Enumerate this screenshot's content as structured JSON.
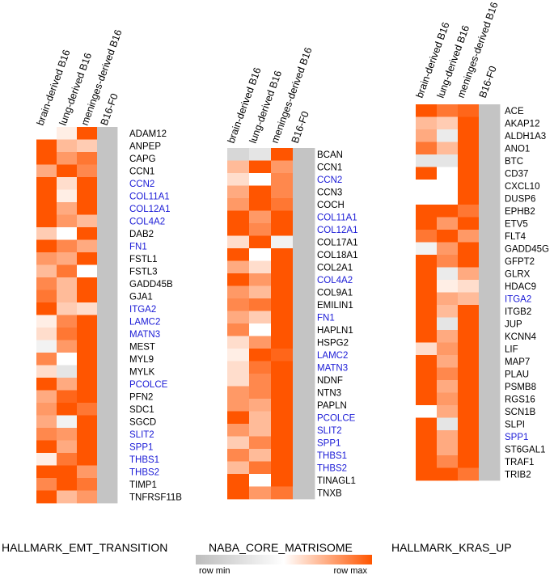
{
  "chart_data": [
    {
      "type": "heatmap",
      "title": "HALLMARK_EMT_TRANSITION",
      "columns": [
        "brain-derived B16",
        "lung-derived B16",
        "meninges-derived B16",
        "B16-F0"
      ],
      "rows": [
        "ADAM12",
        "ANPEP",
        "CAPG",
        "CCN1",
        "CCN2",
        "COL11A1",
        "COL12A1",
        "COL4A2",
        "DAB2",
        "FN1",
        "FSTL1",
        "FSTL3",
        "GADD45B",
        "GJA1",
        "ITGA2",
        "LAMC2",
        "MATN3",
        "MEST",
        "MYL9",
        "MYLK",
        "PCOLCE",
        "PFN2",
        "SDC1",
        "SGCD",
        "SLIT2",
        "SPP1",
        "THBS1",
        "THBS2",
        "TIMP1",
        "TNFRSF11B"
      ],
      "highlighted": [
        "CCN2",
        "COL11A1",
        "COL12A1",
        "COL4A2",
        "FN1",
        "ITGA2",
        "LAMC2",
        "MATN3",
        "PCOLCE",
        "SLIT2",
        "SPP1",
        "THBS1",
        "THBS2"
      ],
      "values": [
        [
          0.5,
          0.55,
          1.0,
          0.0
        ],
        [
          1.0,
          0.7,
          0.65,
          0.0
        ],
        [
          1.0,
          0.8,
          0.9,
          0.0
        ],
        [
          0.75,
          1.0,
          0.85,
          0.0
        ],
        [
          1.0,
          0.6,
          1.0,
          0.0
        ],
        [
          1.0,
          0.55,
          1.0,
          0.0
        ],
        [
          1.0,
          0.75,
          1.0,
          0.0
        ],
        [
          1.0,
          0.8,
          0.7,
          0.0
        ],
        [
          0.65,
          0.5,
          1.0,
          0.0
        ],
        [
          1.0,
          0.85,
          0.75,
          0.0
        ],
        [
          0.8,
          0.75,
          1.0,
          0.0
        ],
        [
          0.7,
          0.9,
          0.5,
          0.0
        ],
        [
          0.85,
          0.7,
          1.0,
          0.0
        ],
        [
          0.9,
          0.7,
          1.0,
          0.0
        ],
        [
          1.0,
          0.65,
          0.6,
          0.0
        ],
        [
          0.55,
          0.85,
          1.0,
          0.0
        ],
        [
          0.6,
          0.9,
          1.0,
          0.0
        ],
        [
          0.4,
          0.8,
          1.0,
          0.0
        ],
        [
          0.85,
          0.5,
          1.0,
          0.0
        ],
        [
          0.6,
          0.3,
          1.0,
          0.0
        ],
        [
          1.0,
          0.75,
          1.0,
          0.0
        ],
        [
          0.75,
          0.95,
          1.0,
          0.0
        ],
        [
          0.8,
          1.0,
          0.9,
          0.0
        ],
        [
          0.75,
          0.4,
          1.0,
          0.0
        ],
        [
          0.85,
          0.8,
          1.0,
          0.0
        ],
        [
          1.0,
          0.75,
          1.0,
          0.0
        ],
        [
          0.55,
          0.9,
          1.0,
          0.0
        ],
        [
          1.0,
          1.0,
          0.8,
          0.0
        ],
        [
          0.85,
          1.0,
          0.9,
          0.0
        ],
        [
          1.0,
          0.7,
          0.8,
          0.0
        ]
      ]
    },
    {
      "type": "heatmap",
      "title": "NABA_CORE_MATRISOME",
      "columns": [
        "brain-derived B16",
        "lung-derived B16",
        "meninges-derived B16",
        "B16-F0"
      ],
      "rows": [
        "BCAN",
        "CCN1",
        "CCN2",
        "CCN3",
        "COCH",
        "COL11A1",
        "COL12A1",
        "COL17A1",
        "COL18A1",
        "COL2A1",
        "COL4A2",
        "COL9A1",
        "EMILIN1",
        "FN1",
        "HAPLN1",
        "HSPG2",
        "LAMC2",
        "MATN3",
        "NDNF",
        "NTN3",
        "PAPLN",
        "PCOLCE",
        "SLIT2",
        "SPP1",
        "THBS1",
        "THBS2",
        "TINAGL1",
        "TNXB"
      ],
      "highlighted": [
        "CCN2",
        "COL11A1",
        "COL12A1",
        "COL4A2",
        "FN1",
        "LAMC2",
        "MATN3",
        "PCOLCE",
        "SLIT2",
        "SPP1",
        "THBS1",
        "THBS2"
      ],
      "values": [
        [
          0.2,
          0.3,
          1.0,
          0.0
        ],
        [
          0.7,
          1.0,
          0.8,
          0.0
        ],
        [
          0.6,
          0.5,
          0.85,
          0.0
        ],
        [
          0.75,
          1.0,
          0.85,
          0.0
        ],
        [
          0.8,
          1.0,
          0.9,
          0.0
        ],
        [
          1.0,
          0.8,
          1.0,
          0.0
        ],
        [
          1.0,
          0.85,
          1.0,
          0.0
        ],
        [
          0.6,
          1.0,
          0.4,
          0.0
        ],
        [
          1.0,
          0.5,
          1.0,
          0.0
        ],
        [
          0.75,
          0.6,
          1.0,
          0.0
        ],
        [
          1.0,
          0.8,
          1.0,
          0.0
        ],
        [
          0.8,
          0.7,
          1.0,
          0.0
        ],
        [
          0.85,
          0.9,
          1.0,
          0.0
        ],
        [
          0.75,
          0.65,
          1.0,
          0.0
        ],
        [
          0.85,
          0.5,
          1.0,
          0.0
        ],
        [
          0.6,
          0.8,
          1.0,
          0.0
        ],
        [
          0.55,
          1.0,
          0.95,
          0.0
        ],
        [
          0.6,
          0.9,
          1.0,
          0.0
        ],
        [
          0.6,
          0.85,
          1.0,
          0.0
        ],
        [
          0.8,
          0.85,
          1.0,
          0.0
        ],
        [
          0.8,
          0.75,
          1.0,
          0.0
        ],
        [
          1.0,
          0.7,
          1.0,
          0.0
        ],
        [
          0.8,
          0.7,
          1.0,
          0.0
        ],
        [
          0.65,
          0.85,
          1.0,
          0.0
        ],
        [
          0.85,
          0.7,
          1.0,
          0.0
        ],
        [
          0.7,
          0.9,
          1.0,
          0.0
        ],
        [
          1.0,
          0.5,
          1.0,
          0.0
        ],
        [
          1.0,
          0.8,
          0.9,
          0.0
        ]
      ]
    },
    {
      "type": "heatmap",
      "title": "HALLMARK_KRAS_UP",
      "columns": [
        "brain-derived B16",
        "lung-derived B16",
        "meninges-derived B16",
        "B16-F0"
      ],
      "rows": [
        "ACE",
        "AKAP12",
        "ALDH1A3",
        "ANO1",
        "BTC",
        "CD37",
        "CXCL10",
        "DUSP6",
        "EPHB2",
        "ETV5",
        "FLT4",
        "GADD45G",
        "GFPT2",
        "GLRX",
        "HDAC9",
        "ITGA2",
        "ITGB2",
        "JUP",
        "KCNN4",
        "LIF",
        "MAP7",
        "PLAU",
        "PSMB8",
        "RGS16",
        "SCN1B",
        "SLPI",
        "SPP1",
        "ST6GAL1",
        "TRAF1",
        "TRIB2"
      ],
      "highlighted": [
        "ITGA2",
        "SPP1"
      ],
      "values": [
        [
          1.0,
          0.9,
          0.95,
          0.0
        ],
        [
          0.7,
          0.65,
          1.0,
          0.0
        ],
        [
          0.75,
          0.35,
          1.0,
          0.0
        ],
        [
          0.9,
          0.7,
          1.0,
          0.0
        ],
        [
          0.3,
          0.3,
          1.0,
          0.0
        ],
        [
          1.0,
          0.5,
          1.0,
          0.0
        ],
        [
          0.5,
          0.5,
          1.0,
          0.0
        ],
        [
          0.5,
          0.5,
          1.0,
          0.0
        ],
        [
          1.0,
          1.0,
          0.9,
          0.0
        ],
        [
          1.0,
          0.8,
          1.0,
          0.0
        ],
        [
          0.9,
          1.0,
          0.8,
          0.0
        ],
        [
          0.4,
          0.8,
          1.0,
          0.0
        ],
        [
          1.0,
          0.85,
          1.0,
          0.0
        ],
        [
          1.0,
          0.35,
          0.75,
          0.0
        ],
        [
          1.0,
          0.55,
          0.6,
          0.0
        ],
        [
          1.0,
          0.75,
          0.7,
          0.0
        ],
        [
          1.0,
          0.7,
          1.0,
          0.0
        ],
        [
          1.0,
          0.3,
          1.0,
          0.0
        ],
        [
          1.0,
          0.75,
          1.0,
          0.0
        ],
        [
          0.6,
          0.8,
          1.0,
          0.0
        ],
        [
          1.0,
          0.75,
          1.0,
          0.0
        ],
        [
          1.0,
          0.85,
          1.0,
          0.0
        ],
        [
          1.0,
          0.75,
          1.0,
          0.0
        ],
        [
          1.0,
          0.8,
          1.0,
          0.0
        ],
        [
          0.5,
          0.75,
          1.0,
          0.0
        ],
        [
          1.0,
          0.3,
          1.0,
          0.0
        ],
        [
          1.0,
          0.75,
          1.0,
          0.0
        ],
        [
          1.0,
          0.75,
          1.0,
          0.0
        ],
        [
          1.0,
          0.85,
          1.0,
          0.0
        ],
        [
          1.0,
          1.0,
          0.9,
          0.0
        ]
      ]
    }
  ],
  "legend": {
    "min_label": "row min",
    "max_label": "row max",
    "colors": [
      "#bdbdbd",
      "#ffffff",
      "#ff5500"
    ]
  },
  "colors": {
    "highlight": "#1a1ad6",
    "default_text": "#000000",
    "f0_gray": "#c4c4c4"
  }
}
